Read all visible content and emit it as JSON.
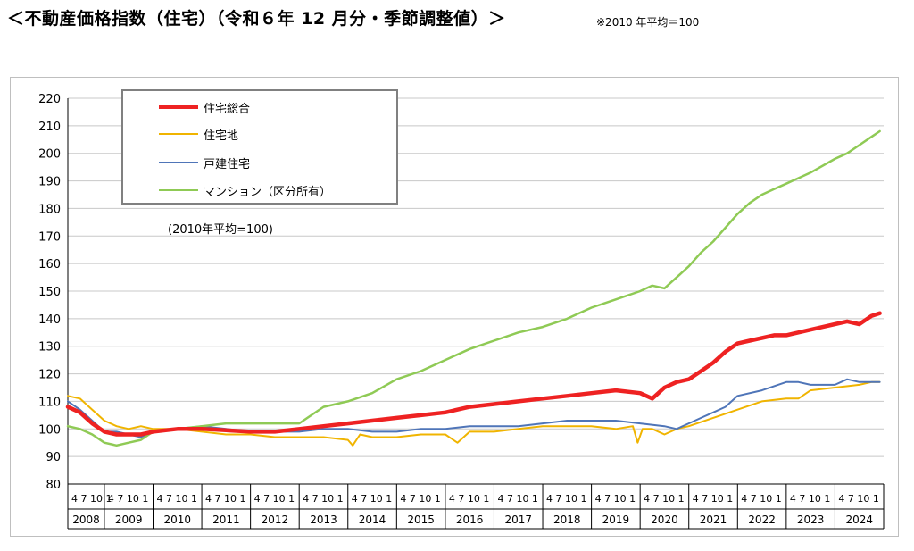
{
  "title": "＜不動産価格指数（住宅）（令和６年 12 月分・季節調整値）＞",
  "note": "※2010 年平均＝100",
  "chart_data": {
    "type": "line",
    "y_ticks": [
      "220",
      "210",
      "200",
      "190",
      "180",
      "170",
      "160",
      "150",
      "140",
      "130",
      "120",
      "110",
      "100",
      "90",
      "80"
    ],
    "ylim": [
      80,
      220
    ],
    "xlim": [
      2008.25,
      2025.0
    ],
    "x_label_years": [
      "2008",
      "2009",
      "2010",
      "2011",
      "2012",
      "2013",
      "2014",
      "2015",
      "2016",
      "2017",
      "2018",
      "2019",
      "2020",
      "2021",
      "2022",
      "2023",
      "2024"
    ],
    "month_ticks": "4 7 10 1",
    "legend_note": "(2010年平均=100)",
    "series": [
      {
        "name": "住宅総合",
        "color": "#ee2222",
        "width": 4.5,
        "x": [
          2008.25,
          2008.5,
          2008.75,
          2009.0,
          2009.25,
          2009.5,
          2009.75,
          2010.0,
          2010.5,
          2011.0,
          2011.5,
          2012.0,
          2012.5,
          2013.0,
          2013.5,
          2014.0,
          2014.5,
          2015.0,
          2015.5,
          2016.0,
          2016.5,
          2017.0,
          2017.5,
          2018.0,
          2018.5,
          2019.0,
          2019.5,
          2020.0,
          2020.25,
          2020.5,
          2020.75,
          2021.0,
          2021.25,
          2021.5,
          2021.75,
          2022.0,
          2022.25,
          2022.5,
          2022.75,
          2023.0,
          2023.25,
          2023.5,
          2023.75,
          2024.0,
          2024.25,
          2024.5,
          2024.75,
          2024.92
        ],
        "y": [
          108,
          106,
          102,
          99,
          98,
          98,
          98,
          99,
          100,
          100,
          99.5,
          99,
          99,
          100,
          101,
          102,
          103,
          104,
          105,
          106,
          108,
          109,
          110,
          111,
          112,
          113,
          114,
          113,
          111,
          115,
          117,
          118,
          121,
          124,
          128,
          131,
          132,
          133,
          134,
          134,
          135,
          136,
          137,
          138,
          139,
          138,
          141,
          142
        ]
      },
      {
        "name": "住宅地",
        "color": "#f0b400",
        "width": 2,
        "x": [
          2008.25,
          2008.5,
          2008.75,
          2009.0,
          2009.25,
          2009.5,
          2009.75,
          2010.0,
          2010.5,
          2011.0,
          2011.5,
          2012.0,
          2012.5,
          2013.0,
          2013.5,
          2014.0,
          2014.1,
          2014.25,
          2014.5,
          2015.0,
          2015.5,
          2016.0,
          2016.25,
          2016.5,
          2017.0,
          2017.5,
          2018.0,
          2018.5,
          2019.0,
          2019.5,
          2019.85,
          2019.95,
          2020.05,
          2020.25,
          2020.5,
          2020.75,
          2021.0,
          2021.5,
          2022.0,
          2022.5,
          2023.0,
          2023.25,
          2023.5,
          2024.0,
          2024.5,
          2024.75,
          2024.92
        ],
        "y": [
          112,
          111,
          107,
          103,
          101,
          100,
          101,
          100,
          100,
          99,
          98,
          98,
          97,
          97,
          97,
          96,
          94,
          98,
          97,
          97,
          98,
          98,
          95,
          99,
          99,
          100,
          101,
          101,
          101,
          100,
          101,
          95,
          100,
          100,
          98,
          100,
          101,
          104,
          107,
          110,
          111,
          111,
          114,
          115,
          116,
          117,
          117
        ]
      },
      {
        "name": "戸建住宅",
        "color": "#4f75b8",
        "width": 2,
        "x": [
          2008.25,
          2008.5,
          2008.75,
          2009.0,
          2009.25,
          2009.5,
          2009.75,
          2010.0,
          2010.5,
          2011.0,
          2011.5,
          2012.0,
          2012.5,
          2013.0,
          2013.5,
          2014.0,
          2014.5,
          2015.0,
          2015.5,
          2016.0,
          2016.5,
          2017.0,
          2017.5,
          2018.0,
          2018.5,
          2019.0,
          2019.5,
          2020.0,
          2020.5,
          2020.75,
          2021.0,
          2021.25,
          2021.5,
          2021.75,
          2022.0,
          2022.5,
          2023.0,
          2023.25,
          2023.5,
          2024.0,
          2024.25,
          2024.5,
          2024.75,
          2024.92
        ],
        "y": [
          110,
          107,
          103,
          99,
          99,
          98,
          97,
          99,
          100,
          101,
          100,
          99,
          99,
          99,
          100,
          100,
          99,
          99,
          100,
          100,
          101,
          101,
          101,
          102,
          103,
          103,
          103,
          102,
          101,
          100,
          102,
          104,
          106,
          108,
          112,
          114,
          117,
          117,
          116,
          116,
          118,
          117,
          117,
          117
        ]
      },
      {
        "name": "マンション（区分所有）",
        "color": "#8fca55",
        "width": 2.5,
        "x": [
          2008.25,
          2008.5,
          2008.75,
          2009.0,
          2009.25,
          2009.5,
          2009.75,
          2010.0,
          2010.5,
          2011.0,
          2011.5,
          2012.0,
          2012.5,
          2013.0,
          2013.25,
          2013.5,
          2014.0,
          2014.5,
          2015.0,
          2015.5,
          2016.0,
          2016.5,
          2017.0,
          2017.5,
          2018.0,
          2018.5,
          2019.0,
          2019.5,
          2020.0,
          2020.25,
          2020.5,
          2020.75,
          2021.0,
          2021.25,
          2021.5,
          2021.75,
          2022.0,
          2022.25,
          2022.5,
          2022.75,
          2023.0,
          2023.25,
          2023.5,
          2024.0,
          2024.25,
          2024.5,
          2024.75,
          2024.92
        ],
        "y": [
          101,
          100,
          98,
          95,
          94,
          95,
          96,
          99,
          100,
          101,
          102,
          102,
          102,
          102,
          105,
          108,
          110,
          113,
          118,
          121,
          125,
          129,
          132,
          135,
          137,
          140,
          144,
          147,
          150,
          152,
          151,
          155,
          159,
          164,
          168,
          173,
          178,
          182,
          185,
          187,
          189,
          191,
          193,
          198,
          200,
          203,
          206,
          208
        ]
      }
    ]
  }
}
